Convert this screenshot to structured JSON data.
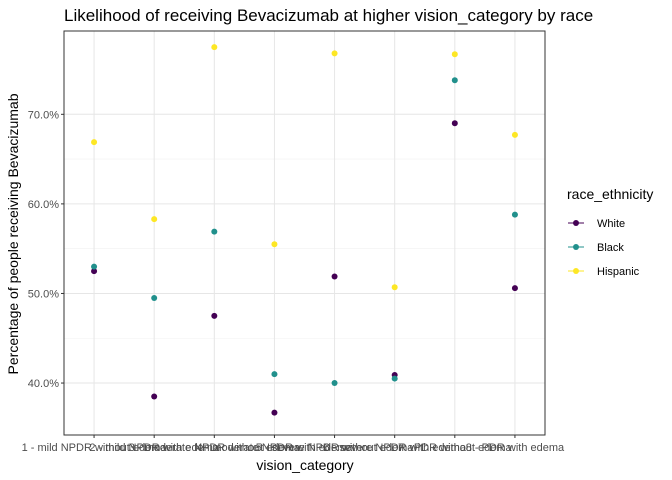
{
  "chart_data": {
    "type": "scatter",
    "title": "Likelihood of receiving Bevacizumab at higher vision_category by race",
    "xlabel": "vision_category",
    "ylabel": "Percentage of people receiving Bevacizumab",
    "categories": [
      "1 - mild NPDR without edema",
      "2 - mild NPDR with edema",
      "3 - moderate NPDR without edema",
      "4 - moderate NPDR with edema",
      "5 - severe NPDR without edema",
      "6 - severe NPDR with edema",
      "7 - PDR without edema",
      "8 - PDR with edema"
    ],
    "ylim": [
      34.2,
      79.3
    ],
    "yticks": [
      40,
      50,
      60,
      70
    ],
    "ytick_labels": [
      "40.0%",
      "50.0%",
      "60.0%",
      "70.0%"
    ],
    "grid": true,
    "legend_title": "race_ethnicity",
    "legend_position": "right",
    "series": [
      {
        "name": "White",
        "color": "#440154",
        "values": [
          52.5,
          38.5,
          47.5,
          36.7,
          51.9,
          40.9,
          69.0,
          50.6
        ]
      },
      {
        "name": "Black",
        "color": "#21908C",
        "values": [
          53.0,
          49.5,
          56.9,
          41.0,
          40.0,
          40.5,
          73.8,
          58.8
        ]
      },
      {
        "name": "Hispanic",
        "color": "#FDE725",
        "values": [
          66.9,
          58.3,
          77.5,
          55.5,
          76.8,
          50.7,
          76.7,
          67.7
        ]
      }
    ]
  }
}
